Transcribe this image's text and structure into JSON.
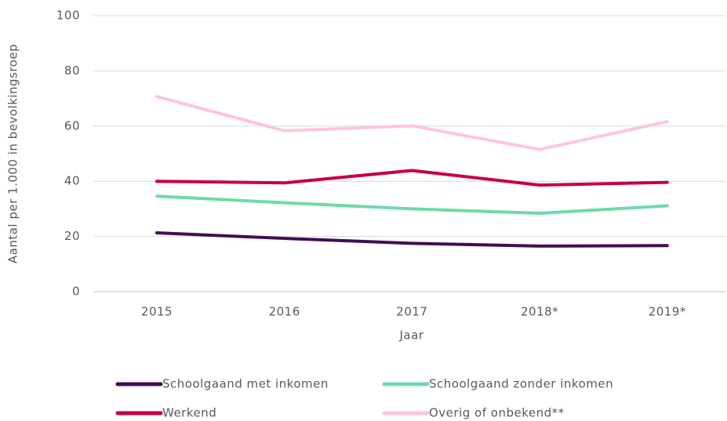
{
  "chart_data": {
    "type": "line",
    "x_label": "Jaar",
    "y_label": "Aantal per 1.000 in bevolkingsroep",
    "categories": [
      "2015",
      "2016",
      "2017",
      "2018*",
      "2019*"
    ],
    "series": [
      {
        "name": "Schoolgaand met inkomen",
        "color": "#3f0f51",
        "values": [
          21.3,
          19.3,
          17.5,
          16.5,
          16.7
        ]
      },
      {
        "name": "Schoolgaand zonder inkomen",
        "color": "#6fdaa8",
        "values": [
          34.6,
          32.2,
          30.0,
          28.4,
          31.1
        ]
      },
      {
        "name": "Werkend",
        "color": "#c6003f",
        "values": [
          40.0,
          39.4,
          43.9,
          38.6,
          39.6
        ]
      },
      {
        "name": "Overig of onbekend**",
        "color": "#ffc5d7",
        "values": [
          70.7,
          58.3,
          60.1,
          51.5,
          61.6
        ]
      }
    ],
    "ylim": [
      0,
      100
    ],
    "yticks": [
      0,
      20,
      40,
      60,
      80,
      100
    ],
    "grid": true
  }
}
